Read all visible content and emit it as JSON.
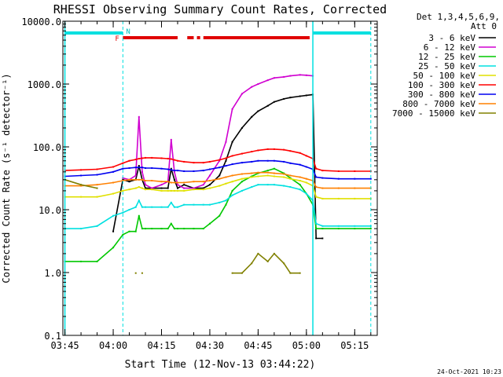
{
  "chart_data": {
    "type": "line",
    "title": "RHESSI Observing Summary Count Rates, Corrected",
    "xlabel": "Start Time (12-Nov-13 03:44:22)",
    "ylabel": "Corrected Count Rate (s⁻¹ detector⁻¹)",
    "yscale": "log",
    "ylim": [
      0.1,
      10000
    ],
    "xlim": [
      "03:44:22",
      "05:22:00"
    ],
    "x_ticks": [
      "03:45",
      "04:00",
      "04:15",
      "04:30",
      "04:45",
      "05:00",
      "05:15"
    ],
    "y_ticks": [
      "0.1",
      "1.0",
      "10.0",
      "100.0",
      "1000.0",
      "10000.0"
    ],
    "grid": false,
    "legend_placement": "outside-right",
    "legend_header": [
      "Det 1,3,4,5,6,9,",
      "Att 0"
    ],
    "timestamp": "24-Oct-2021 10:23",
    "flag_labels": {
      "night": "N",
      "flare": "F"
    },
    "flags": {
      "night": [
        [
          "03:45",
          "04:03"
        ],
        [
          "05:02",
          "05:20"
        ]
      ],
      "flare": [
        [
          "04:03",
          "04:20"
        ],
        [
          "04:23",
          "04:25"
        ],
        [
          "04:26",
          "04:27"
        ],
        [
          "04:28",
          "05:01"
        ]
      ]
    },
    "vlines_solid": [
      "03:45",
      "05:02"
    ],
    "vlines_dashed": [
      "04:03",
      "05:20"
    ],
    "x_times": [
      "03:45",
      "03:50",
      "03:55",
      "04:00",
      "04:03",
      "04:05",
      "04:07",
      "04:08",
      "04:09",
      "04:10",
      "04:12",
      "04:15",
      "04:17",
      "04:18",
      "04:19",
      "04:20",
      "04:22",
      "04:25",
      "04:28",
      "04:30",
      "04:33",
      "04:35",
      "04:37",
      "04:40",
      "04:43",
      "04:45",
      "04:48",
      "04:50",
      "04:53",
      "04:55",
      "04:58",
      "05:00",
      "05:02",
      "05:03",
      "05:05",
      "05:10",
      "05:15",
      "05:20"
    ],
    "series": [
      {
        "name": "3 - 6 keV",
        "color": "#000000",
        "values": [
          null,
          null,
          null,
          4.5,
          30,
          28,
          30,
          50,
          30,
          22,
          22,
          22,
          22,
          45,
          30,
          22,
          25,
          22,
          22,
          25,
          35,
          60,
          120,
          200,
          300,
          370,
          450,
          520,
          580,
          610,
          640,
          660,
          680,
          3.5,
          3.5,
          null,
          null,
          null
        ]
      },
      {
        "name": "6 - 12 keV",
        "color": "#d000d0",
        "values": [
          null,
          null,
          null,
          null,
          32,
          30,
          35,
          300,
          40,
          25,
          22,
          25,
          28,
          130,
          40,
          25,
          22,
          22,
          25,
          35,
          60,
          120,
          400,
          700,
          900,
          1000,
          1150,
          1250,
          1300,
          1350,
          1400,
          1380,
          1350,
          null,
          null,
          null,
          null,
          null
        ]
      },
      {
        "name": "12 - 25 keV",
        "color": "#00c800",
        "values": [
          1.5,
          1.5,
          1.5,
          2.5,
          4,
          4.5,
          4.5,
          8,
          5,
          5,
          5,
          5,
          5,
          6,
          5,
          5,
          5,
          5,
          5,
          6,
          8,
          12,
          20,
          28,
          34,
          38,
          42,
          45,
          38,
          32,
          25,
          18,
          12,
          5,
          5,
          5,
          5,
          5
        ]
      },
      {
        "name": "25 - 50 keV",
        "color": "#00e0e0",
        "values": [
          5,
          5,
          5.5,
          8,
          9,
          10,
          11,
          14,
          11,
          11,
          11,
          11,
          11,
          13,
          11,
          11,
          12,
          12,
          12,
          12,
          13,
          14,
          17,
          20,
          23,
          25,
          25,
          25,
          24,
          23,
          21,
          18,
          14,
          6,
          5.5,
          5.5,
          5.5,
          5.5
        ]
      },
      {
        "name": "50 - 100 keV",
        "color": "#e0e000",
        "values": [
          16,
          16,
          16,
          18,
          20,
          21,
          22,
          23,
          22,
          21,
          21,
          20,
          20,
          20,
          20,
          20,
          20,
          21,
          21,
          22,
          24,
          26,
          28,
          31,
          33,
          34,
          35,
          34,
          33,
          31,
          29,
          27,
          24,
          16,
          15,
          15,
          15,
          15
        ]
      },
      {
        "name": "100 - 300 keV",
        "color": "#ff0000",
        "values": [
          42,
          43,
          44,
          48,
          55,
          60,
          63,
          65,
          66,
          67,
          67,
          66,
          65,
          64,
          62,
          60,
          58,
          56,
          56,
          58,
          62,
          66,
          72,
          78,
          84,
          88,
          92,
          92,
          90,
          86,
          80,
          72,
          65,
          45,
          42,
          41,
          41,
          41
        ]
      },
      {
        "name": "300 - 800 keV",
        "color": "#0000f0",
        "values": [
          34,
          35,
          36,
          40,
          45,
          46,
          47,
          47,
          47,
          46,
          46,
          45,
          44,
          43,
          42,
          42,
          41,
          41,
          42,
          44,
          47,
          50,
          53,
          56,
          58,
          60,
          60,
          60,
          58,
          55,
          52,
          48,
          44,
          33,
          32,
          31,
          31,
          31
        ]
      },
      {
        "name": "800 - 7000 keV",
        "color": "#ff8000",
        "values": [
          24,
          24,
          25,
          27,
          29,
          30,
          30,
          30,
          30,
          29,
          29,
          28,
          28,
          27,
          27,
          27,
          27,
          28,
          28,
          29,
          31,
          33,
          35,
          37,
          38,
          39,
          39,
          38,
          37,
          35,
          33,
          31,
          29,
          23,
          22,
          22,
          22,
          22
        ]
      },
      {
        "name": "7000 - 15000 keV",
        "color": "#808000",
        "values": [
          30,
          25,
          22,
          null,
          null,
          null,
          0.98,
          null,
          0.98,
          null,
          null,
          null,
          null,
          null,
          null,
          null,
          null,
          null,
          null,
          null,
          null,
          null,
          0.98,
          0.98,
          1.4,
          2,
          1.5,
          2,
          1.4,
          0.98,
          0.98,
          null,
          null,
          null,
          null,
          null,
          null,
          null
        ]
      }
    ]
  }
}
